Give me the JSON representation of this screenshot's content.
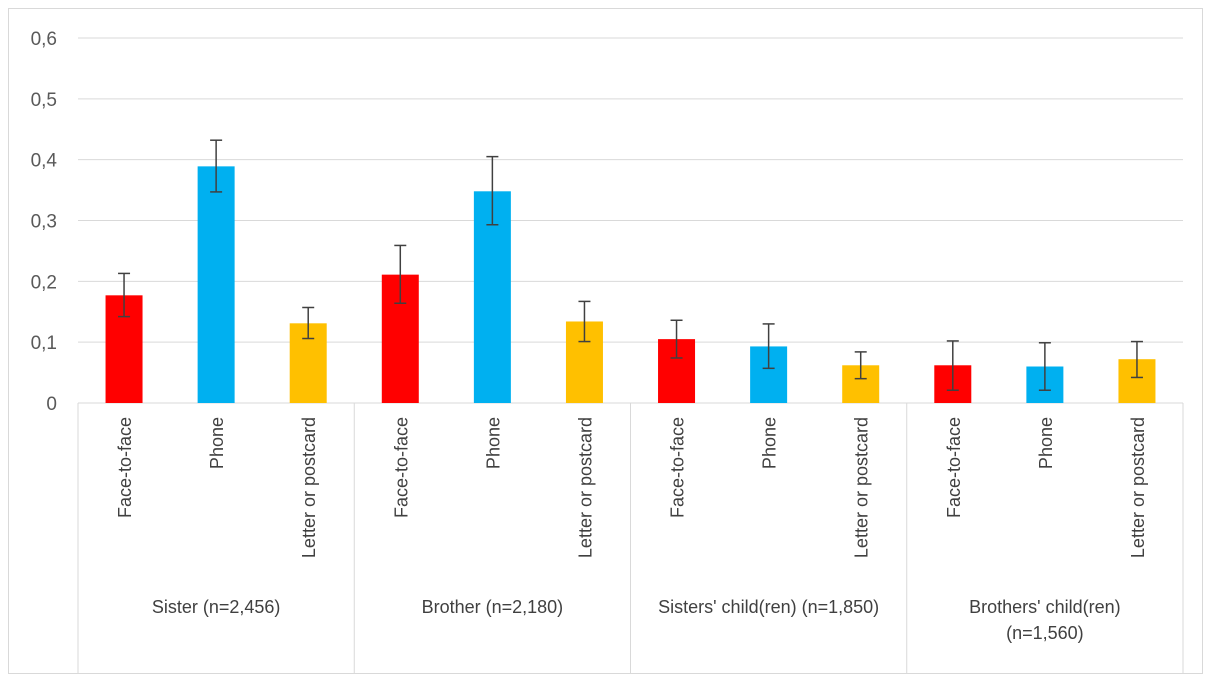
{
  "chart_data": {
    "type": "bar",
    "ylim": [
      0,
      0.6
    ],
    "yticks": [
      "0",
      "0,1",
      "0,2",
      "0,3",
      "0,4",
      "0,5",
      "0,6"
    ],
    "grid": true,
    "categories": [
      "Face-to-face",
      "Phone",
      "Letter or postcard"
    ],
    "colors": {
      "Face-to-face": "#ff0000",
      "Phone": "#00b0f0",
      "Letter or postcard": "#ffc000"
    },
    "groups": [
      {
        "label": "Sister (n=2,456)",
        "label_lines": [
          "Sister (n=2,456)"
        ],
        "values": [
          0.177,
          0.389,
          0.131
        ],
        "err_low": [
          0.142,
          0.347,
          0.106
        ],
        "err_high": [
          0.213,
          0.432,
          0.157
        ]
      },
      {
        "label": "Brother (n=2,180)",
        "label_lines": [
          "Brother (n=2,180)"
        ],
        "values": [
          0.211,
          0.348,
          0.134
        ],
        "err_low": [
          0.164,
          0.293,
          0.101
        ],
        "err_high": [
          0.259,
          0.405,
          0.167
        ]
      },
      {
        "label": "Sisters' child(ren) (n=1,850)",
        "label_lines": [
          "Sisters' child(ren) (n=1,850)"
        ],
        "values": [
          0.105,
          0.093,
          0.062
        ],
        "err_low": [
          0.074,
          0.057,
          0.04
        ],
        "err_high": [
          0.136,
          0.13,
          0.084
        ]
      },
      {
        "label": "Brothers' child(ren) (n=1,560)",
        "label_lines": [
          "Brothers' child(ren)",
          "(n=1,560)"
        ],
        "values": [
          0.062,
          0.06,
          0.072
        ],
        "err_low": [
          0.021,
          0.021,
          0.042
        ],
        "err_high": [
          0.102,
          0.099,
          0.101
        ]
      }
    ]
  }
}
